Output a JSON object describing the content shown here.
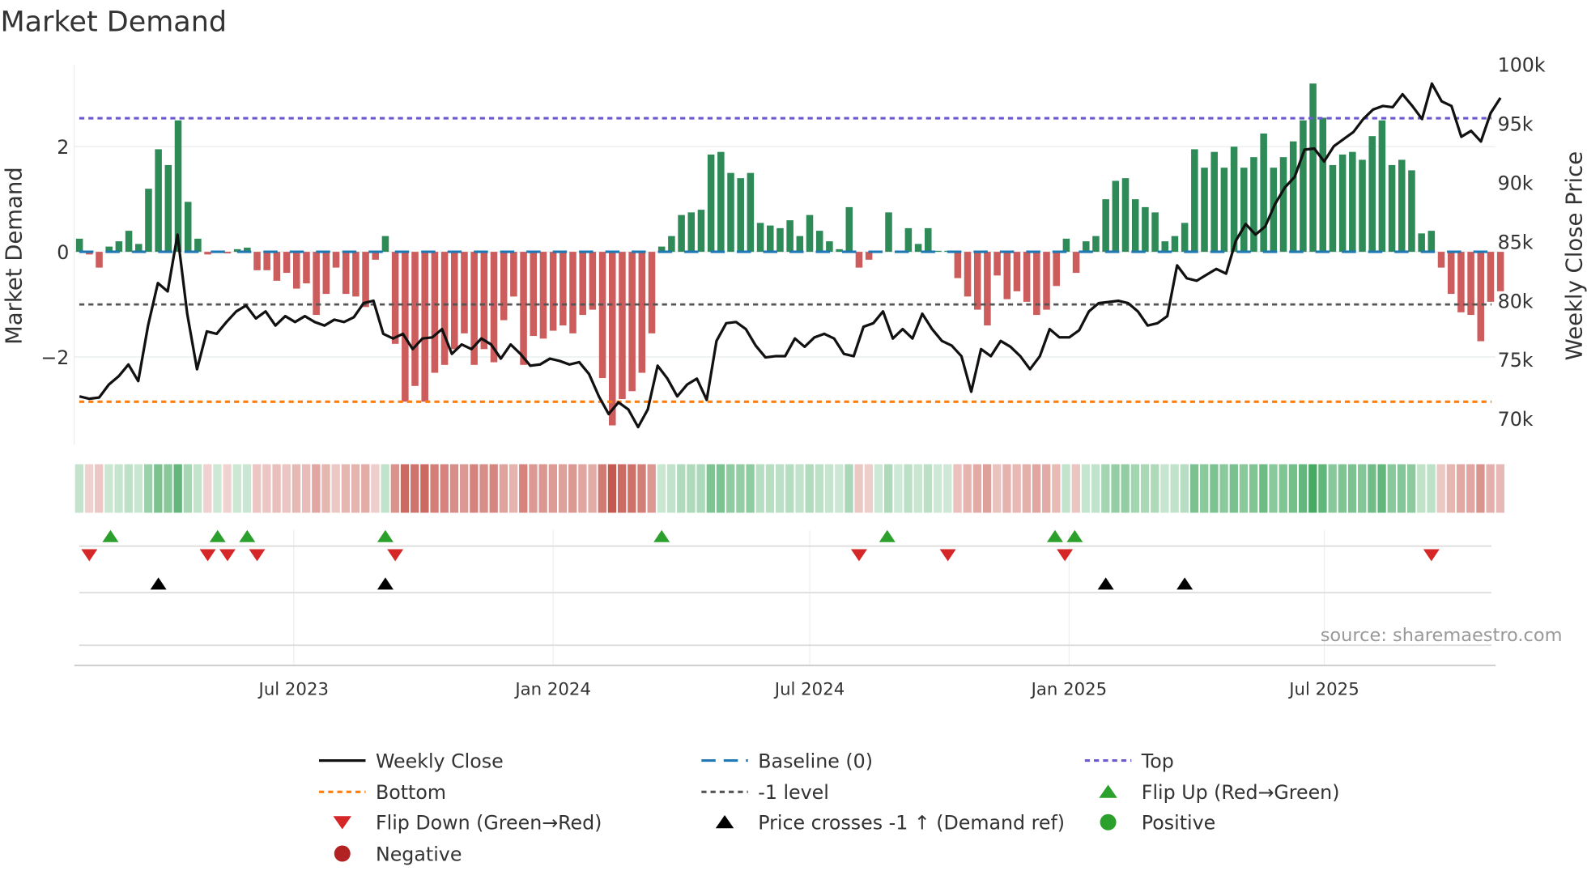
{
  "chart_data": {
    "type": "bar",
    "title": "Market Demand",
    "ylabel": "Market Demand",
    "y2label": "Weekly Close Price",
    "ylim": [
      -3.65,
      3.55
    ],
    "y2lim": [
      68000,
      100000
    ],
    "yticks": [
      {
        "v": 2,
        "label": "2"
      },
      {
        "v": 0,
        "label": "0"
      },
      {
        "v": -2,
        "label": "−2"
      }
    ],
    "y2ticks": [
      {
        "v": 100,
        "label": "100k"
      },
      {
        "v": 95,
        "label": "95k"
      },
      {
        "v": 90,
        "label": "90k"
      },
      {
        "v": 85,
        "label": "85k"
      },
      {
        "v": 80,
        "label": "80k"
      },
      {
        "v": 75,
        "label": "75k"
      },
      {
        "v": 70,
        "label": "70k"
      }
    ],
    "xticks": [
      {
        "date": "2023-07-01",
        "label": "Jul 2023"
      },
      {
        "date": "2024-01-01",
        "label": "Jan 2024"
      },
      {
        "date": "2024-07-01",
        "label": "Jul 2024"
      },
      {
        "date": "2025-01-01",
        "label": "Jan 2025"
      },
      {
        "date": "2025-07-01",
        "label": "Jul 2025"
      }
    ],
    "first_week": "2023-01-30",
    "frequency": "weekly",
    "levels": {
      "top": 2.54,
      "bottom": -2.85,
      "minus_one": -1,
      "baseline": 0
    },
    "demand": [
      0.25,
      -0.05,
      -0.3,
      0.1,
      0.2,
      0.4,
      0.15,
      1.2,
      1.95,
      1.65,
      2.5,
      0.95,
      0.25,
      -0.05,
      0.02,
      -0.03,
      0.05,
      0.08,
      -0.35,
      -0.35,
      -0.55,
      -0.4,
      -0.7,
      -0.6,
      -1.2,
      -0.8,
      -0.3,
      -0.8,
      -0.85,
      -1.05,
      -0.15,
      0.3,
      -1.75,
      -2.85,
      -2.55,
      -2.85,
      -2.3,
      -2.15,
      -1.85,
      -1.55,
      -2.15,
      -1.85,
      -2.1,
      -1.3,
      -0.85,
      -2.15,
      -1.6,
      -1.65,
      -1.5,
      -1.4,
      -1.55,
      -1.2,
      -1.1,
      -2.4,
      -3.3,
      -2.8,
      -2.65,
      -2.3,
      -1.55,
      0.1,
      0.3,
      0.7,
      0.75,
      0.8,
      1.85,
      1.9,
      1.5,
      1.4,
      1.5,
      0.55,
      0.5,
      0.45,
      0.6,
      0.3,
      0.7,
      0.4,
      0.2,
      0.05,
      0.85,
      -0.3,
      -0.15,
      0.02,
      0.75,
      0.02,
      0.45,
      0.15,
      0.45,
      0.02,
      0.02,
      -0.5,
      -0.85,
      -1.1,
      -1.4,
      -0.45,
      -0.9,
      -0.75,
      -0.95,
      -1.2,
      -1.1,
      -0.65,
      0.25,
      -0.4,
      0.2,
      0.3,
      1.0,
      1.35,
      1.4,
      1.0,
      0.85,
      0.75,
      0.2,
      0.3,
      0.55,
      1.95,
      1.6,
      1.9,
      1.6,
      2.0,
      1.6,
      1.8,
      2.25,
      1.6,
      1.8,
      2.1,
      2.5,
      3.2,
      2.55,
      1.65,
      1.85,
      1.9,
      1.75,
      2.2,
      2.5,
      1.65,
      1.75,
      1.55,
      0.35,
      0.4,
      -0.3,
      -0.8,
      -1.15,
      -1.2,
      -1.7,
      -0.95,
      -0.75
    ],
    "weekly_close_k": [
      71.9,
      71.7,
      71.8,
      72.9,
      73.6,
      74.6,
      73.2,
      77.9,
      81.5,
      80.8,
      85.6,
      78.9,
      74.2,
      77.4,
      77.2,
      78.2,
      79.1,
      79.6,
      78.5,
      79.1,
      77.9,
      78.7,
      78.2,
      78.7,
      78.2,
      77.9,
      78.4,
      78.2,
      78.6,
      79.8,
      80.0,
      77.2,
      76.8,
      77.2,
      75.9,
      76.8,
      76.9,
      77.6,
      75.5,
      76.3,
      75.9,
      76.8,
      76.3,
      75.1,
      76.3,
      75.5,
      74.5,
      74.6,
      75.1,
      74.9,
      74.6,
      74.8,
      73.8,
      71.9,
      70.4,
      71.4,
      70.8,
      69.3,
      70.8,
      74.5,
      73.4,
      71.9,
      72.9,
      73.4,
      71.6,
      76.6,
      78.1,
      78.2,
      77.6,
      76.2,
      75.2,
      75.3,
      75.3,
      76.8,
      76.1,
      76.9,
      77.2,
      76.8,
      75.5,
      75.3,
      77.8,
      78.1,
      79.1,
      76.8,
      77.6,
      76.8,
      78.9,
      77.6,
      76.6,
      76.2,
      75.3,
      72.3,
      75.9,
      75.3,
      76.6,
      76.1,
      75.3,
      74.2,
      75.3,
      77.6,
      76.9,
      76.9,
      77.5,
      79.1,
      79.8,
      79.9,
      80.0,
      79.8,
      79.1,
      77.9,
      78.1,
      78.7,
      83.0,
      81.9,
      81.7,
      82.2,
      82.7,
      82.3,
      85.1,
      86.5,
      85.6,
      86.3,
      88.2,
      89.6,
      90.5,
      92.8,
      92.9,
      91.8,
      93.1,
      93.7,
      94.3,
      95.4,
      96.2,
      96.5,
      96.4,
      97.5,
      96.5,
      95.4,
      98.4,
      96.9,
      96.5,
      93.9,
      94.4,
      93.5,
      95.9,
      97.2
    ],
    "flip_up": [
      "2023-02-21",
      "2023-05-08",
      "2023-05-29",
      "2023-09-04",
      "2024-03-18",
      "2024-08-25",
      "2024-12-22",
      "2025-01-05"
    ],
    "flip_down": [
      "2023-02-06",
      "2023-05-01",
      "2023-05-15",
      "2023-06-05",
      "2023-09-11",
      "2024-08-05",
      "2024-10-07",
      "2024-12-29",
      "2025-09-15"
    ],
    "price_crosses": [
      "2023-03-27",
      "2023-09-04",
      "2025-01-27",
      "2025-03-24"
    ],
    "legend": [
      {
        "label": "Weekly Close",
        "kind": "line",
        "color": "#111111"
      },
      {
        "label": "Baseline (0)",
        "kind": "dash",
        "color": "#1f77b4"
      },
      {
        "label": "Top",
        "kind": "dot",
        "color": "#6a5acd"
      },
      {
        "label": "Bottom",
        "kind": "dot",
        "color": "#ff7f0e"
      },
      {
        "label": "-1 level",
        "kind": "dot",
        "color": "#555555"
      },
      {
        "label": "Flip Up (Red→Green)",
        "kind": "tri-up",
        "color": "#2ca02c"
      },
      {
        "label": "Flip Down (Green→Red)",
        "kind": "tri-down",
        "color": "#d62728"
      },
      {
        "label": "Price crosses -1 ↑ (Demand ref)",
        "kind": "tri-up",
        "color": "#000000"
      },
      {
        "label": "Positive",
        "kind": "circle",
        "color": "#2ca02c"
      },
      {
        "label": "Negative",
        "kind": "circle",
        "color": "#b22222"
      }
    ],
    "legend_position": "bottom",
    "source": "source: sharemaestro.com",
    "colors": {
      "positive": "#2e8b57",
      "negative": "#cd5c5c"
    }
  }
}
